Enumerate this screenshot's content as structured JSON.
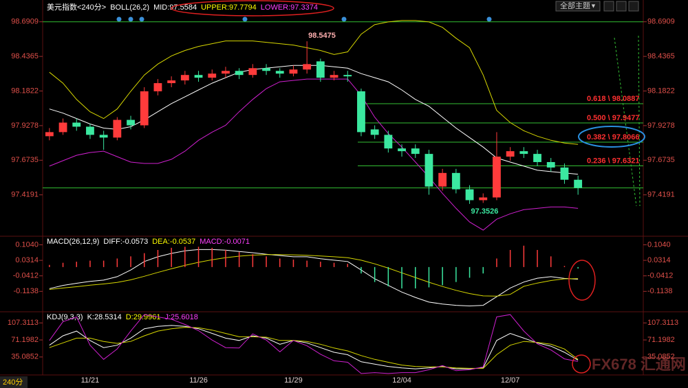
{
  "header": {
    "theme_menu": "全部主题",
    "period": "240分"
  },
  "watermark": "FX678 汇通网",
  "chart_data": [
    {
      "type": "candlestick",
      "title": "美元指数<240分>",
      "indicator": "BOLL(26,2)",
      "readouts": [
        {
          "text": "MID:97.5584",
          "color": "#ffffff"
        },
        {
          "text": "UPPER:97.7794",
          "color": "#ffff00"
        },
        {
          "text": "LOWER:97.3374",
          "color": "#ff40ff"
        }
      ],
      "categories": [
        null,
        null,
        null,
        "11/21",
        null,
        null,
        null,
        null,
        null,
        null,
        null,
        "11/26",
        null,
        null,
        null,
        null,
        null,
        null,
        "11/29",
        null,
        null,
        null,
        null,
        null,
        null,
        null,
        "12/04",
        null,
        null,
        null,
        null,
        null,
        null,
        null,
        "12/07",
        null,
        null,
        null,
        null,
        null
      ],
      "open": [
        97.85,
        97.88,
        97.95,
        97.92,
        97.86,
        97.84,
        97.97,
        97.93,
        98.18,
        98.24,
        98.26,
        98.3,
        98.28,
        98.31,
        98.33,
        98.3,
        98.35,
        98.33,
        98.31,
        98.34,
        98.4,
        98.28,
        98.3,
        98.18,
        97.9,
        97.86,
        97.76,
        97.76,
        97.72,
        97.48,
        97.58,
        97.46,
        97.38,
        97.4,
        97.7,
        97.74,
        97.72,
        97.66,
        97.62,
        97.53
      ],
      "high": [
        97.91,
        97.98,
        97.98,
        97.94,
        97.89,
        97.99,
        98.0,
        98.21,
        98.27,
        98.29,
        98.33,
        98.33,
        98.34,
        98.36,
        98.35,
        98.38,
        98.38,
        98.35,
        98.37,
        98.5475,
        98.42,
        98.33,
        98.33,
        98.2,
        97.93,
        97.89,
        97.79,
        97.79,
        97.75,
        97.61,
        97.61,
        97.49,
        97.43,
        97.88,
        97.77,
        97.77,
        97.75,
        97.69,
        97.65,
        97.56
      ],
      "low": [
        97.82,
        97.86,
        97.89,
        97.83,
        97.75,
        97.82,
        97.9,
        97.91,
        98.15,
        98.21,
        98.23,
        98.25,
        98.26,
        98.28,
        98.27,
        98.28,
        98.3,
        98.28,
        98.29,
        98.31,
        98.25,
        98.26,
        98.25,
        97.85,
        97.83,
        97.73,
        97.7,
        97.69,
        97.42,
        97.45,
        97.43,
        97.3526,
        97.36,
        97.38,
        97.67,
        97.69,
        97.63,
        97.59,
        97.5,
        97.42
      ],
      "close": [
        97.88,
        97.95,
        97.92,
        97.86,
        97.84,
        97.97,
        97.93,
        98.18,
        98.24,
        98.26,
        98.3,
        98.28,
        98.31,
        98.33,
        98.3,
        98.35,
        98.33,
        98.31,
        98.34,
        98.38,
        98.28,
        98.3,
        98.29,
        97.88,
        97.86,
        97.76,
        97.74,
        97.72,
        97.48,
        97.58,
        97.46,
        97.38,
        97.4,
        97.7,
        97.74,
        97.72,
        97.66,
        97.62,
        97.53,
        97.47
      ],
      "up_color": "#ff3b3b",
      "down_color": "#3be8a0",
      "series": [
        {
          "color": "#ffffff",
          "values": [
            98.05,
            98.02,
            97.98,
            97.94,
            97.91,
            97.9,
            97.92,
            97.97,
            98.03,
            98.09,
            98.14,
            98.19,
            98.24,
            98.28,
            98.32,
            98.34,
            98.35,
            98.36,
            98.37,
            98.37,
            98.37,
            98.36,
            98.35,
            98.31,
            98.28,
            98.25,
            98.19,
            98.12,
            98.07,
            97.99,
            97.91,
            97.84,
            97.77,
            97.69,
            97.66,
            97.63,
            97.6,
            97.59,
            97.58,
            97.57
          ]
        },
        {
          "color": "#d8d800",
          "values": [
            98.32,
            98.24,
            98.12,
            98.03,
            97.98,
            98.05,
            98.18,
            98.3,
            98.38,
            98.44,
            98.48,
            98.51,
            98.53,
            98.55,
            98.55,
            98.55,
            98.54,
            98.53,
            98.52,
            98.5,
            98.48,
            98.45,
            98.47,
            98.6,
            98.67,
            98.69,
            98.7,
            98.7,
            98.69,
            98.65,
            98.57,
            98.5,
            98.3,
            98.04,
            97.95,
            97.89,
            97.85,
            97.82,
            97.8,
            97.79
          ]
        },
        {
          "color": "#d020d0",
          "values": [
            97.63,
            97.67,
            97.71,
            97.73,
            97.74,
            97.7,
            97.66,
            97.65,
            97.65,
            97.68,
            97.74,
            97.82,
            97.88,
            97.93,
            98.03,
            98.12,
            98.2,
            98.25,
            98.26,
            98.27,
            98.27,
            98.27,
            98.27,
            98.15,
            97.99,
            97.87,
            97.77,
            97.66,
            97.55,
            97.43,
            97.32,
            97.22,
            97.16,
            97.24,
            97.28,
            97.31,
            97.32,
            97.33,
            97.33,
            97.32
          ]
        }
      ],
      "fib_levels": [
        {
          "value": 98.0887,
          "label": "0.618 \\ 98.0887"
        },
        {
          "value": 97.9477,
          "label": "0.500 \\ 97.9477"
        },
        {
          "value": 97.8066,
          "label": "0.382 \\ 97.8066"
        },
        {
          "value": 97.6321,
          "label": "0.236 \\ 97.6321"
        }
      ],
      "levels": [
        98.6909,
        97.47
      ],
      "level_color": "#33c033",
      "fib_label_color": "#ff3030",
      "ylim": [
        97.12,
        98.75
      ],
      "yticks": [
        98.6909,
        98.4365,
        98.1822,
        97.9278,
        97.6735,
        97.4191
      ]
    },
    {
      "type": "line",
      "title": "MACD(26,12,9)",
      "readouts": [
        {
          "text": "DIFF:-0.0573",
          "color": "#ffffff"
        },
        {
          "text": "DEA:-0.0537",
          "color": "#ffff00"
        },
        {
          "text": "MACD:-0.0071",
          "color": "#ff40ff"
        }
      ],
      "up_color": "#ff3b3b",
      "down_color": "#3be8a0",
      "series": [
        {
          "color": "#ffffff",
          "values": [
            -0.101,
            -0.086,
            -0.076,
            -0.067,
            -0.061,
            -0.045,
            -0.014,
            0.026,
            0.048,
            0.064,
            0.076,
            0.082,
            0.082,
            0.079,
            0.073,
            0.067,
            0.06,
            0.054,
            0.048,
            0.048,
            0.039,
            0.032,
            0.026,
            -0.014,
            -0.055,
            -0.086,
            -0.117,
            -0.142,
            -0.164,
            -0.173,
            -0.179,
            -0.182,
            -0.179,
            -0.139,
            -0.098,
            -0.07,
            -0.052,
            -0.045,
            -0.053,
            -0.057
          ]
        },
        {
          "color": "#d8d800",
          "values": [
            -0.105,
            -0.098,
            -0.092,
            -0.085,
            -0.079,
            -0.072,
            -0.06,
            -0.043,
            -0.025,
            -0.008,
            0.008,
            0.022,
            0.034,
            0.044,
            0.051,
            0.056,
            0.058,
            0.058,
            0.057,
            0.055,
            0.052,
            0.048,
            0.044,
            0.032,
            0.015,
            -0.005,
            -0.027,
            -0.049,
            -0.071,
            -0.091,
            -0.109,
            -0.124,
            -0.135,
            -0.136,
            -0.128,
            -0.09,
            -0.075,
            -0.063,
            -0.055,
            -0.054
          ]
        },
        {
          "style": "bar",
          "values": [
            0.01,
            0.02,
            0.025,
            0.03,
            0.03,
            0.04,
            0.05,
            0.065,
            0.08,
            0.09,
            0.095,
            0.095,
            0.09,
            0.08,
            0.07,
            0.06,
            0.05,
            0.04,
            0.035,
            0.03,
            0.025,
            0.02,
            0.015,
            -0.03,
            -0.07,
            -0.09,
            -0.1,
            -0.1,
            -0.095,
            -0.085,
            -0.07,
            -0.05,
            -0.03,
            0.04,
            0.08,
            0.1,
            0.08,
            0.05,
            0.005,
            -0.007
          ]
        }
      ],
      "ylim": [
        -0.19,
        0.141
      ],
      "yticks": [
        {
          "value": 0.104,
          "label": "0.1040"
        },
        {
          "value": 0.0314,
          "label": "0.0314"
        },
        {
          "value": -0.0412,
          "label": "-0.0412"
        },
        {
          "value": -0.1138,
          "label": "-0.1138"
        }
      ]
    },
    {
      "type": "line",
      "title": "KDJ(9,3,3)",
      "readouts": [
        {
          "text": "K:28.5314",
          "color": "#ffffff"
        },
        {
          "text": "D:29.9961",
          "color": "#ffff00"
        },
        {
          "text": "J:25.6018",
          "color": "#ff40ff"
        }
      ],
      "series": [
        {
          "color": "#ffffff",
          "values": [
            60,
            80,
            90,
            70,
            55,
            60,
            75,
            95,
            100,
            102,
            100,
            95,
            85,
            75,
            70,
            80,
            75,
            62,
            70,
            65,
            55,
            45,
            40,
            25,
            20,
            15,
            12,
            10,
            12,
            15,
            10,
            10,
            12,
            70,
            85,
            75,
            65,
            58,
            45,
            28.5
          ]
        },
        {
          "color": "#d8d800",
          "values": [
            55,
            65,
            75,
            75,
            68,
            64,
            68,
            80,
            90,
            95,
            98,
            97,
            92,
            85,
            78,
            78,
            77,
            70,
            70,
            68,
            62,
            54,
            48,
            38,
            30,
            24,
            18,
            15,
            14,
            14,
            12,
            11,
            11,
            40,
            60,
            68,
            66,
            62,
            52,
            30
          ]
        },
        {
          "color": "#d020d0",
          "values": [
            70,
            110,
            120,
            60,
            30,
            52,
            90,
            125,
            120,
            115,
            104,
            91,
            71,
            55,
            54,
            84,
            71,
            46,
            70,
            59,
            41,
            27,
            24,
            0,
            2,
            0,
            2,
            2,
            8,
            17,
            6,
            8,
            14,
            120,
            125,
            90,
            63,
            50,
            31,
            25.6
          ]
        }
      ],
      "ylim": [
        -3,
        128
      ],
      "yticks": [
        107.3113,
        71.1982,
        35.0852
      ]
    }
  ]
}
